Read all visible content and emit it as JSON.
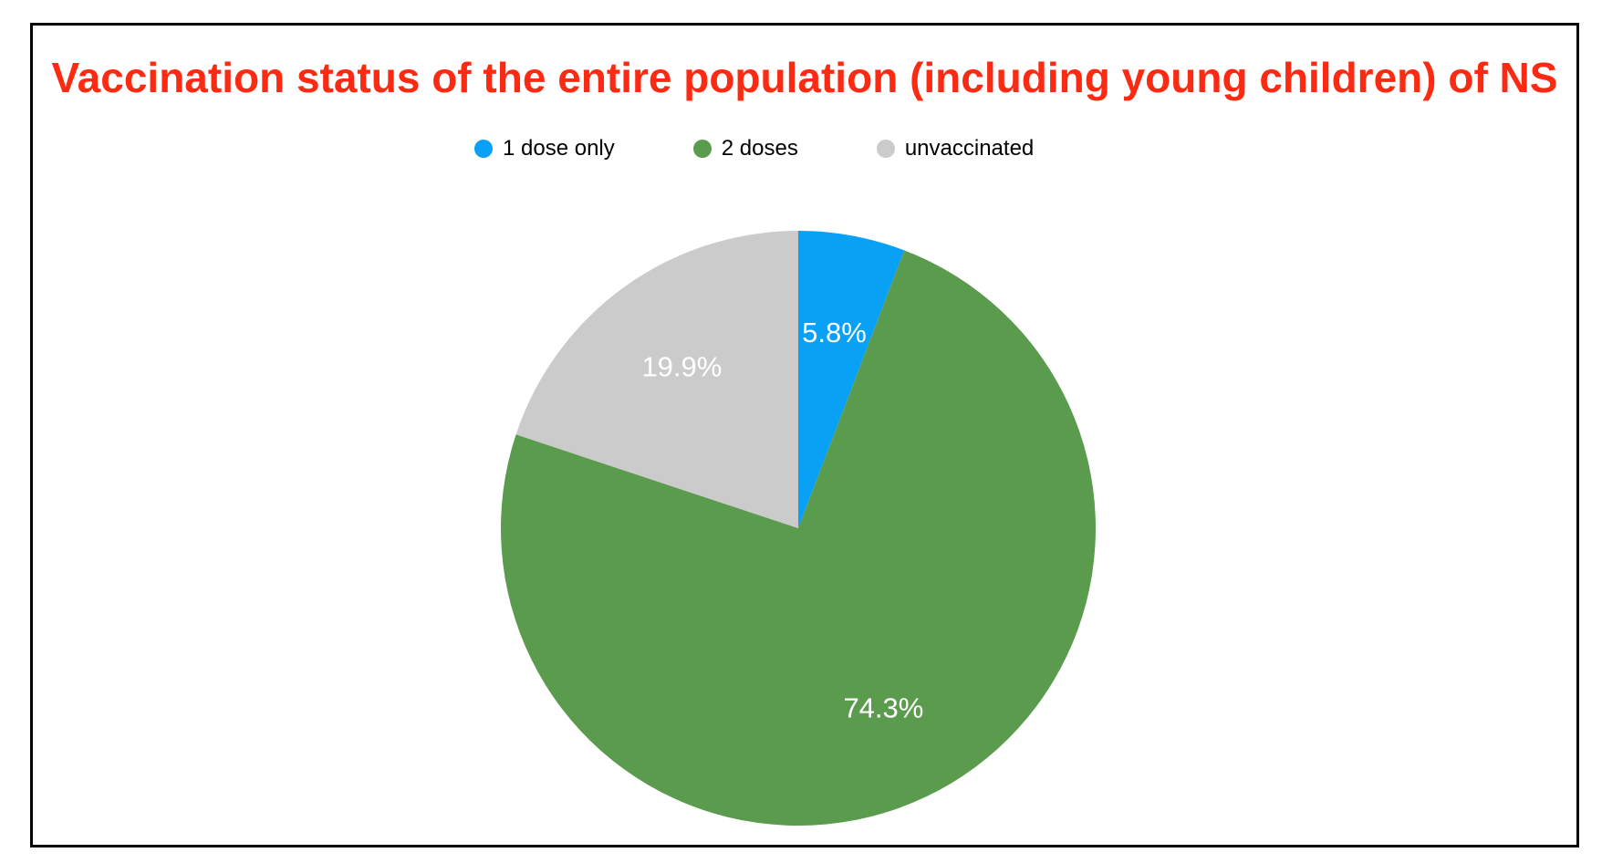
{
  "chart_data": {
    "type": "pie",
    "title": "Vaccination status of the entire population (including young children) of NS",
    "title_color": "#fb2a12",
    "legend_position": "top",
    "start_angle_deg": 0,
    "direction": "clockwise",
    "value_label_color": "#ffffff",
    "slices": [
      {
        "label": "1 dose only",
        "value": 5.8,
        "display": "5.8%",
        "color": "#09a1f6"
      },
      {
        "label": "2 doses",
        "value": 74.3,
        "display": "74.3%",
        "color": "#5a9b4d"
      },
      {
        "label": "unvaccinated",
        "value": 19.9,
        "display": "19.9%",
        "color": "#cbcbcb"
      }
    ]
  },
  "frame": {
    "border_color": "#000000",
    "background": "#ffffff"
  }
}
